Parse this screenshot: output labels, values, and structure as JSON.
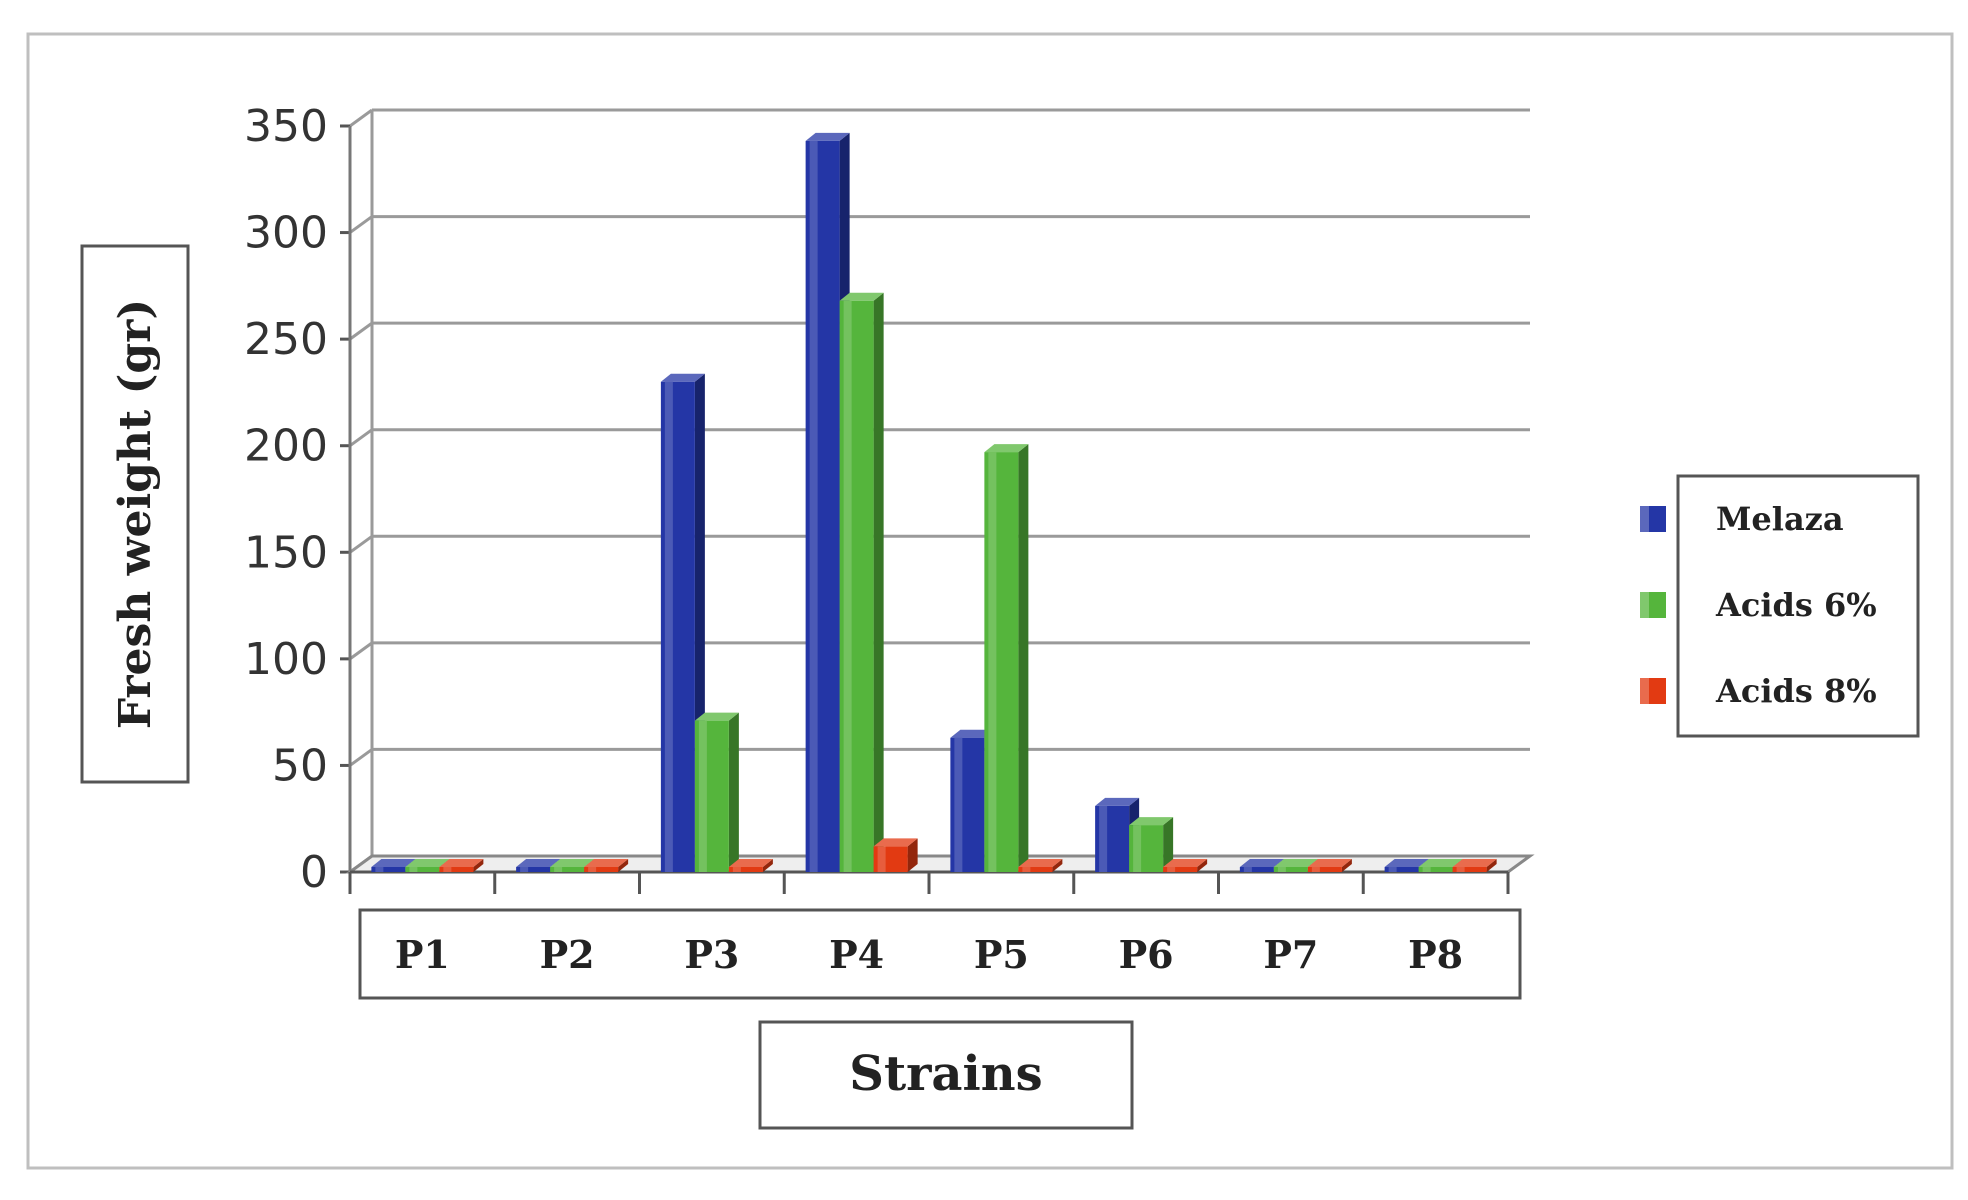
{
  "chart_data": {
    "type": "bar",
    "categories": [
      "P1",
      "P2",
      "P3",
      "P4",
      "P5",
      "P6",
      "P7",
      "P8"
    ],
    "series": [
      {
        "name": "Melaza",
        "values": [
          0,
          0,
          230,
          343,
          63,
          31,
          0,
          0
        ]
      },
      {
        "name": "Acids 6%",
        "values": [
          0,
          0,
          71,
          268,
          197,
          22,
          0,
          0
        ]
      },
      {
        "name": "Acids 8%",
        "values": [
          0,
          0,
          0,
          12,
          0,
          0,
          0,
          0
        ]
      }
    ],
    "yticks": [
      "0",
      "50",
      "100",
      "150",
      "200",
      "250",
      "300",
      "350"
    ],
    "ylim": [
      0,
      350
    ],
    "ylabel": "Fresh weight (gr)",
    "xlabel": "Strains",
    "grid": true,
    "legend_position": "right",
    "colors": [
      "#2436a6",
      "#55b53c",
      "#e23a12"
    ]
  }
}
